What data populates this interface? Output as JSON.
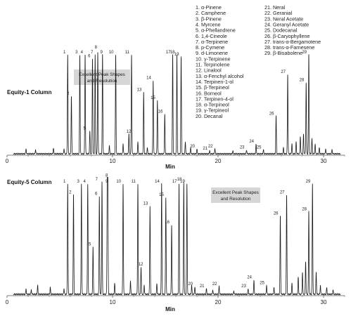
{
  "chart_data": [
    {
      "type": "line",
      "title": "Equity-1 Column",
      "xlabel": "Min",
      "xlim": [
        0,
        32
      ],
      "ticks": [
        0,
        10,
        20,
        30
      ],
      "callout": [
        "Excellent Peak Shapes",
        "and Resolution"
      ],
      "peaks": [
        {
          "label": "1",
          "x": 5.75,
          "height": 1.0
        },
        {
          "label": "2",
          "x": 6.1,
          "height": 0.58
        },
        {
          "label": "3",
          "x": 6.9,
          "height": 1.0
        },
        {
          "label": "4",
          "x": 7.4,
          "height": 1.0
        },
        {
          "label": "5",
          "x": 7.85,
          "height": 0.23
        },
        {
          "label": "6",
          "x": 8.1,
          "height": 0.96
        },
        {
          "label": "7",
          "x": 8.35,
          "height": 1.0
        },
        {
          "label": "8",
          "x": 8.6,
          "height": 1.03
        },
        {
          "label": "9",
          "x": 9.05,
          "height": 1.0
        },
        {
          "label": "10",
          "x": 10.3,
          "height": 1.0
        },
        {
          "label": "11",
          "x": 11.8,
          "height": 1.0
        },
        {
          "label": "12",
          "x": 11.55,
          "height": 0.2
        },
        {
          "label": "13",
          "x": 12.95,
          "height": 0.62
        },
        {
          "label": "14",
          "x": 13.85,
          "height": 0.74
        },
        {
          "label": "15",
          "x": 14.25,
          "height": 0.54
        },
        {
          "label": "16",
          "x": 14.95,
          "height": 0.4
        },
        {
          "label": "17",
          "x": 15.7,
          "height": 1.0
        },
        {
          "label": "18",
          "x": 16.1,
          "height": 1.0
        },
        {
          "label": "19",
          "x": 16.5,
          "height": 0.98
        },
        {
          "label": "20",
          "x": 18.0,
          "height": 0.05
        },
        {
          "label": "21",
          "x": 19.2,
          "height": 0.03
        },
        {
          "label": "22",
          "x": 19.7,
          "height": 0.05
        },
        {
          "label": "23",
          "x": 22.7,
          "height": 0.04
        },
        {
          "label": "24",
          "x": 23.6,
          "height": 0.1
        },
        {
          "label": "25",
          "x": 24.3,
          "height": 0.04
        },
        {
          "label": "26",
          "x": 25.5,
          "height": 0.38
        },
        {
          "label": "27",
          "x": 26.6,
          "height": 0.8
        },
        {
          "label": "28",
          "x": 28.35,
          "height": 0.72
        },
        {
          "label": "29",
          "x": 28.6,
          "height": 1.0
        }
      ],
      "minor_peaks": [
        {
          "x": 1.8,
          "height": 0.05
        },
        {
          "x": 2.7,
          "height": 0.04
        },
        {
          "x": 4.4,
          "height": 0.06
        },
        {
          "x": 5.4,
          "height": 0.05
        },
        {
          "x": 9.7,
          "height": 0.08
        },
        {
          "x": 11.0,
          "height": 0.1
        },
        {
          "x": 12.4,
          "height": 0.12
        },
        {
          "x": 13.3,
          "height": 0.06
        },
        {
          "x": 16.9,
          "height": 0.12
        },
        {
          "x": 17.4,
          "height": 0.06
        },
        {
          "x": 21.4,
          "height": 0.03
        },
        {
          "x": 26.2,
          "height": 0.06
        },
        {
          "x": 27.0,
          "height": 0.1
        },
        {
          "x": 27.4,
          "height": 0.12
        },
        {
          "x": 27.8,
          "height": 0.18
        },
        {
          "x": 28.1,
          "height": 0.2
        },
        {
          "x": 28.9,
          "height": 0.15
        },
        {
          "x": 29.2,
          "height": 0.1
        },
        {
          "x": 29.6,
          "height": 0.06
        },
        {
          "x": 30.2,
          "height": 0.05
        },
        {
          "x": 30.8,
          "height": 0.04
        }
      ]
    },
    {
      "type": "line",
      "title": "Equity-5 Column",
      "xlabel": "Min",
      "xlim": [
        0,
        32
      ],
      "ticks": [
        0,
        10,
        20,
        30
      ],
      "callout": [
        "Excellent Peak Shapes",
        "and Resolution"
      ],
      "peaks": [
        {
          "label": "1",
          "x": 5.75,
          "height": 1.0
        },
        {
          "label": "2",
          "x": 6.3,
          "height": 0.9
        },
        {
          "label": "3",
          "x": 7.05,
          "height": 1.0
        },
        {
          "label": "4",
          "x": 7.65,
          "height": 1.0
        },
        {
          "label": "5",
          "x": 8.15,
          "height": 0.43
        },
        {
          "label": "6",
          "x": 8.75,
          "height": 0.89
        },
        {
          "label": "7",
          "x": 9.0,
          "height": 1.02
        },
        {
          "label": "8",
          "x": 9.55,
          "height": 1.03
        },
        {
          "label": "9",
          "x": 9.5,
          "height": 1.0
        },
        {
          "label": "10",
          "x": 11.0,
          "height": 1.0
        },
        {
          "label": "11",
          "x": 12.4,
          "height": 1.0
        },
        {
          "label": "12",
          "x": 12.7,
          "height": 0.25
        },
        {
          "label": "13",
          "x": 13.55,
          "height": 0.8
        },
        {
          "label": "14",
          "x": 14.65,
          "height": 1.0
        },
        {
          "label": "15",
          "x": 15.05,
          "height": 0.88
        },
        {
          "label": "16",
          "x": 15.6,
          "height": 0.63
        },
        {
          "label": "17",
          "x": 16.3,
          "height": 1.0
        },
        {
          "label": "18",
          "x": 16.75,
          "height": 1.02
        },
        {
          "label": "19",
          "x": 17.05,
          "height": 1.0
        },
        {
          "label": "20",
          "x": 17.8,
          "height": 0.07
        },
        {
          "label": "21",
          "x": 18.9,
          "height": 0.05
        },
        {
          "label": "22",
          "x": 20.1,
          "height": 0.07
        },
        {
          "label": "23",
          "x": 22.85,
          "height": 0.05
        },
        {
          "label": "24",
          "x": 23.4,
          "height": 0.13
        },
        {
          "label": "25",
          "x": 24.6,
          "height": 0.08
        },
        {
          "label": "26",
          "x": 25.9,
          "height": 0.71
        },
        {
          "label": "27",
          "x": 26.5,
          "height": 0.9
        },
        {
          "label": "28",
          "x": 28.6,
          "height": 0.75
        },
        {
          "label": "29",
          "x": 28.95,
          "height": 1.0
        }
      ],
      "minor_peaks": [
        {
          "x": 1.8,
          "height": 0.05
        },
        {
          "x": 2.3,
          "height": 0.04
        },
        {
          "x": 2.9,
          "height": 0.08
        },
        {
          "x": 4.1,
          "height": 0.06
        },
        {
          "x": 5.4,
          "height": 0.05
        },
        {
          "x": 10.2,
          "height": 0.1
        },
        {
          "x": 11.7,
          "height": 0.12
        },
        {
          "x": 13.0,
          "height": 0.08
        },
        {
          "x": 14.2,
          "height": 0.1
        },
        {
          "x": 17.5,
          "height": 0.08
        },
        {
          "x": 19.5,
          "height": 0.04
        },
        {
          "x": 21.5,
          "height": 0.03
        },
        {
          "x": 25.3,
          "height": 0.06
        },
        {
          "x": 27.0,
          "height": 0.1
        },
        {
          "x": 27.6,
          "height": 0.16
        },
        {
          "x": 28.0,
          "height": 0.2
        },
        {
          "x": 28.3,
          "height": 0.3
        },
        {
          "x": 29.3,
          "height": 0.2
        },
        {
          "x": 29.7,
          "height": 0.08
        },
        {
          "x": 30.3,
          "height": 0.06
        },
        {
          "x": 30.9,
          "height": 0.04
        }
      ]
    }
  ],
  "legend": {
    "col1": [
      "1. α-Pinene",
      "2. Camphene",
      "3. β-Pinene",
      "4. Myrcene",
      "5. α-Phellandrene",
      "6. 1,4-Cineole",
      "7. α-Terpinene",
      "8. p-Cymene",
      "9. d-Limonene",
      "10. γ-Terpinene",
      "11. Terpinolene",
      "12. Linalool",
      "13. α-Fenchyl alcohol",
      "14. Terpinen-1-ol",
      "15. β-Terpineol",
      "16. Borneol",
      "17. Terpinen-4-ol",
      "18. α-Terpineol",
      "19. γ-Terpineol",
      "20. Decanal"
    ],
    "col2": [
      "21. Neral",
      "22. Geranial",
      "23. Neral Acetate",
      "24. Geranyl Acetate",
      "25. Dodecanal",
      "26. β-Caryophyllene",
      "27. trans-α-Bergamotene",
      "28. trans-α-Farnesene",
      "29. β-Bisabolene"
    ]
  },
  "colors": {
    "trace": "#1c1c1c",
    "callout_fill": "#d6d6d6",
    "axis": "#555555"
  }
}
